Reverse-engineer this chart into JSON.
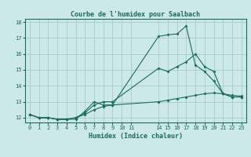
{
  "title": "Courbe de l'humidex pour Saalbach",
  "xlabel": "Humidex (Indice chaleur)",
  "bg_color": "#cce8e8",
  "grid_color": "#aacfcf",
  "line_color": "#1a6b5a",
  "xlim_min": -0.5,
  "xlim_max": 23.5,
  "ylim_min": 11.7,
  "ylim_max": 18.2,
  "xticks": [
    0,
    1,
    2,
    3,
    4,
    5,
    6,
    7,
    8,
    9,
    10,
    11,
    14,
    15,
    16,
    17,
    18,
    19,
    20,
    21,
    22,
    23
  ],
  "yticks": [
    12,
    13,
    14,
    15,
    16,
    17,
    18
  ],
  "series1_x": [
    0,
    1,
    2,
    3,
    4,
    5,
    6,
    7,
    8,
    9,
    14,
    15,
    16,
    17,
    18,
    19,
    20,
    21,
    22,
    23
  ],
  "series1_y": [
    12.2,
    12.0,
    12.0,
    11.9,
    11.9,
    11.9,
    12.4,
    13.0,
    12.8,
    12.8,
    17.1,
    17.2,
    17.25,
    17.75,
    15.3,
    14.9,
    14.3,
    13.5,
    13.3,
    13.3
  ],
  "series2_x": [
    0,
    1,
    2,
    3,
    4,
    5,
    6,
    7,
    8,
    9,
    14,
    15,
    16,
    17,
    18,
    19,
    20,
    21,
    22,
    23
  ],
  "series2_y": [
    12.2,
    12.0,
    12.0,
    11.9,
    11.9,
    12.0,
    12.3,
    12.8,
    13.0,
    13.0,
    15.1,
    14.9,
    15.2,
    15.5,
    16.0,
    15.2,
    14.9,
    13.5,
    13.3,
    13.3
  ],
  "series3_x": [
    0,
    1,
    2,
    3,
    4,
    5,
    6,
    7,
    8,
    9,
    14,
    15,
    16,
    17,
    18,
    19,
    20,
    21,
    22,
    23
  ],
  "series3_y": [
    12.2,
    12.0,
    12.0,
    11.9,
    11.9,
    12.0,
    12.2,
    12.5,
    12.7,
    12.8,
    13.0,
    13.1,
    13.2,
    13.3,
    13.4,
    13.5,
    13.55,
    13.5,
    13.4,
    13.35
  ]
}
